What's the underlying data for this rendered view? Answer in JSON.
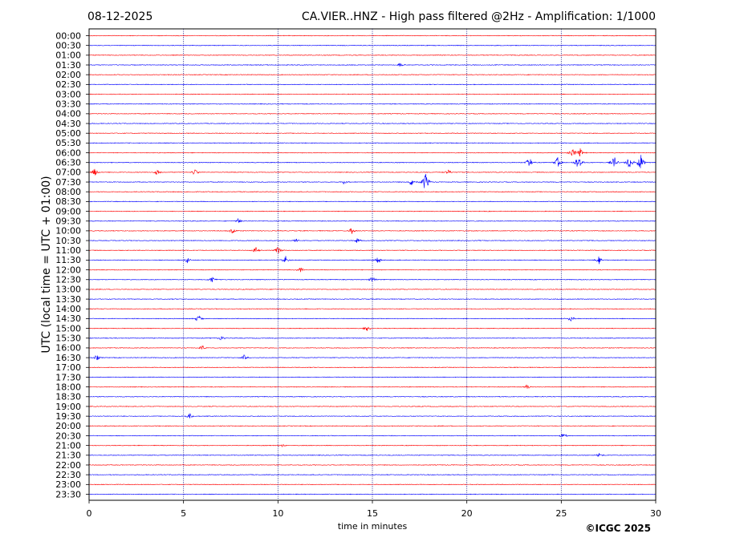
{
  "header": {
    "date": "08-12-2025",
    "title": "CA.VIER..HNZ - High pass filtered @2Hz - Amplification: 1/1000"
  },
  "footer": {
    "copyright": "©ICGC 2025"
  },
  "colors": {
    "trace_odd": "#ff0000",
    "trace_even": "#0000ff",
    "grid": "#000080",
    "frame": "#000000"
  },
  "chart_data": {
    "type": "line",
    "title": "CA.VIER..HNZ - High pass filtered @2Hz - Amplification: 1/1000",
    "xlabel": "time in minutes",
    "ylabel": "UTC (local time = UTC + 01:00)",
    "xlim": [
      0,
      30
    ],
    "x_ticks": [
      0,
      5,
      10,
      15,
      20,
      25,
      30
    ],
    "grid": "vertical dotted at 5-minute intervals",
    "series_colors": "alternating red / blue per row",
    "rows": [
      "00:00",
      "00:30",
      "01:00",
      "01:30",
      "02:00",
      "02:30",
      "03:00",
      "03:30",
      "04:00",
      "04:30",
      "05:00",
      "05:30",
      "06:00",
      "06:30",
      "07:00",
      "07:30",
      "08:00",
      "08:30",
      "09:00",
      "09:30",
      "10:00",
      "10:30",
      "11:00",
      "11:30",
      "12:00",
      "12:30",
      "13:00",
      "13:30",
      "14:00",
      "14:30",
      "15:00",
      "15:30",
      "16:00",
      "16:30",
      "17:00",
      "17:30",
      "18:00",
      "18:30",
      "19:00",
      "19:30",
      "20:00",
      "20:30",
      "21:00",
      "21:30",
      "22:00",
      "22:30",
      "23:00",
      "23:30"
    ],
    "events": [
      {
        "row": "01:30",
        "t": 16.5,
        "amp": 0.25
      },
      {
        "row": "06:00",
        "t": 25.6,
        "amp": 0.6
      },
      {
        "row": "06:00",
        "t": 26.0,
        "amp": 0.5
      },
      {
        "row": "06:30",
        "t": 23.3,
        "amp": 0.6
      },
      {
        "row": "06:30",
        "t": 24.8,
        "amp": 0.6
      },
      {
        "row": "06:30",
        "t": 25.9,
        "amp": 1.0
      },
      {
        "row": "06:30",
        "t": 27.8,
        "amp": 0.7
      },
      {
        "row": "06:30",
        "t": 28.6,
        "amp": 0.8
      },
      {
        "row": "06:30",
        "t": 29.2,
        "amp": 1.0
      },
      {
        "row": "07:00",
        "t": 0.3,
        "amp": 0.45
      },
      {
        "row": "07:00",
        "t": 3.6,
        "amp": 0.35
      },
      {
        "row": "07:00",
        "t": 5.6,
        "amp": 0.4
      },
      {
        "row": "07:00",
        "t": 19.0,
        "amp": 0.3
      },
      {
        "row": "07:30",
        "t": 13.5,
        "amp": 0.25
      },
      {
        "row": "07:30",
        "t": 17.1,
        "amp": 0.5
      },
      {
        "row": "07:30",
        "t": 17.8,
        "amp": 1.2
      },
      {
        "row": "09:30",
        "t": 7.9,
        "amp": 0.3
      },
      {
        "row": "10:00",
        "t": 7.6,
        "amp": 0.3
      },
      {
        "row": "10:00",
        "t": 13.9,
        "amp": 0.35
      },
      {
        "row": "10:30",
        "t": 11.0,
        "amp": 0.3
      },
      {
        "row": "10:30",
        "t": 14.2,
        "amp": 0.35
      },
      {
        "row": "11:00",
        "t": 8.8,
        "amp": 0.4
      },
      {
        "row": "11:00",
        "t": 10.0,
        "amp": 0.5
      },
      {
        "row": "11:30",
        "t": 5.2,
        "amp": 0.3
      },
      {
        "row": "11:30",
        "t": 10.4,
        "amp": 0.45
      },
      {
        "row": "11:30",
        "t": 15.3,
        "amp": 0.4
      },
      {
        "row": "11:30",
        "t": 27.0,
        "amp": 0.45
      },
      {
        "row": "12:00",
        "t": 11.2,
        "amp": 0.35
      },
      {
        "row": "12:30",
        "t": 6.5,
        "amp": 0.35
      },
      {
        "row": "12:30",
        "t": 15.0,
        "amp": 0.4
      },
      {
        "row": "14:30",
        "t": 5.8,
        "amp": 0.45
      },
      {
        "row": "14:30",
        "t": 25.5,
        "amp": 0.35
      },
      {
        "row": "15:00",
        "t": 14.7,
        "amp": 0.5
      },
      {
        "row": "15:30",
        "t": 7.0,
        "amp": 0.3
      },
      {
        "row": "16:00",
        "t": 6.0,
        "amp": 0.3
      },
      {
        "row": "16:30",
        "t": 0.4,
        "amp": 0.35
      },
      {
        "row": "16:30",
        "t": 8.2,
        "amp": 0.35
      },
      {
        "row": "18:00",
        "t": 23.2,
        "amp": 0.3
      },
      {
        "row": "19:30",
        "t": 5.3,
        "amp": 0.4
      },
      {
        "row": "20:30",
        "t": 25.1,
        "amp": 0.35
      },
      {
        "row": "21:00",
        "t": 10.2,
        "amp": 0.3
      },
      {
        "row": "21:30",
        "t": 27.0,
        "amp": 0.3
      }
    ]
  }
}
